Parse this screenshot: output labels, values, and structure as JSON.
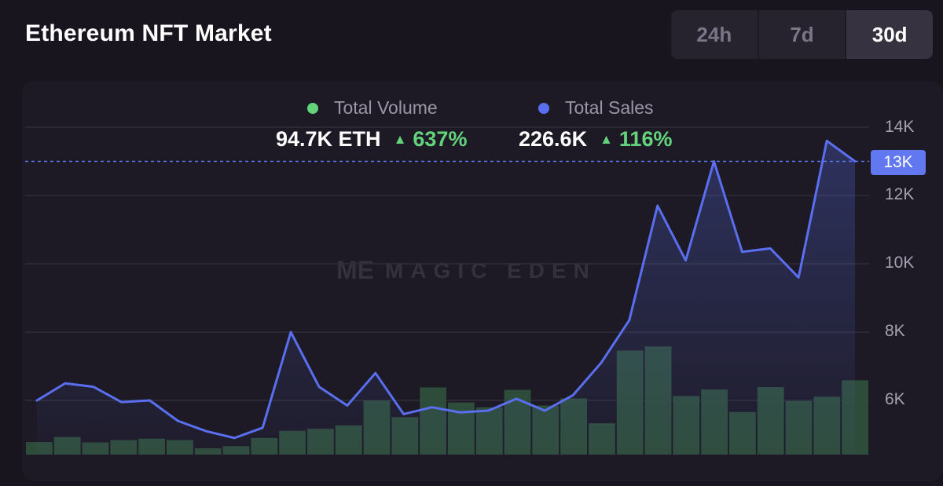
{
  "header": {
    "title": "Ethereum NFT Market",
    "ranges": [
      "24h",
      "7d",
      "30d"
    ],
    "active_range": "30d"
  },
  "legend": {
    "volume": {
      "label": "Total Volume",
      "value": "94.7K ETH",
      "change": "637%",
      "color": "#63d37c"
    },
    "sales": {
      "label": "Total Sales",
      "value": "226.6K",
      "change": "116%",
      "color": "#5a6ff0"
    }
  },
  "watermark": {
    "logo": "ME",
    "text": "MAGIC EDEN"
  },
  "chart_data": {
    "type": "line",
    "y_axis": {
      "ticks": [
        "14K",
        "12K",
        "10K",
        "8K",
        "6K"
      ],
      "tick_values": [
        14000,
        12000,
        10000,
        8000,
        6000
      ],
      "range": [
        4300,
        14400
      ],
      "current_value": 13000,
      "current_label": "13K"
    },
    "series": [
      {
        "name": "Total Sales",
        "type": "line",
        "color": "#5a6ff0",
        "values": [
          6000,
          6500,
          6400,
          5950,
          6000,
          5400,
          5100,
          4900,
          5200,
          8000,
          6400,
          5850,
          6800,
          5600,
          5800,
          5650,
          5700,
          6050,
          5700,
          6150,
          7100,
          8350,
          11700,
          10100,
          13000,
          10350,
          10450,
          9600,
          13600,
          13000
        ]
      },
      {
        "name": "Total Volume",
        "type": "bar",
        "color": "#2e4c3a",
        "values": [
          4780,
          4930,
          4770,
          4840,
          4880,
          4840,
          4600,
          4660,
          4900,
          5110,
          5170,
          5270,
          6000,
          5510,
          6380,
          5940,
          5800,
          6310,
          5850,
          6060,
          5330,
          7460,
          7580,
          6130,
          6320,
          5660,
          6390,
          5980,
          6110,
          6590
        ]
      }
    ]
  }
}
